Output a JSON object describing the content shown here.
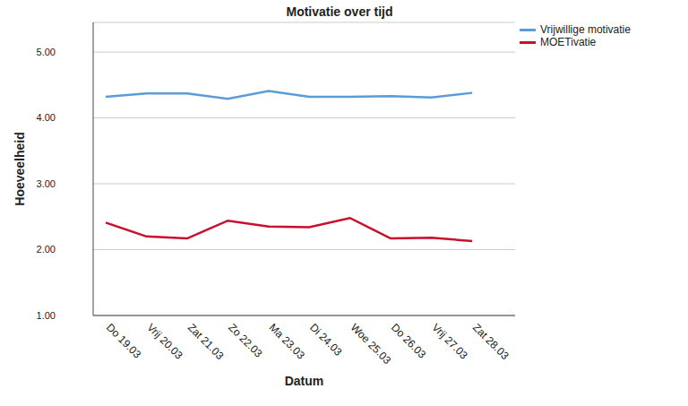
{
  "chart_data": {
    "type": "line",
    "title": "Motivatie over tijd",
    "x_label": "Datum",
    "y_label": "Hoeveelheid",
    "categories": [
      "Do 19.03",
      "Vrij 20.03",
      "Zat 21.03",
      "Zo 22.03",
      "Ma 23.03",
      "Di 24.03",
      "Woe 25.03",
      "Do 26.03",
      "Vrij 27.03",
      "Zat 28.03"
    ],
    "series": [
      {
        "name": "Vrijwillige motivatie",
        "color": "#5b9bd8",
        "values": [
          4.32,
          4.37,
          4.37,
          4.29,
          4.41,
          4.32,
          4.32,
          4.33,
          4.31,
          4.38
        ]
      },
      {
        "name": "MOETivatie",
        "color": "#c8102e",
        "values": [
          2.41,
          2.2,
          2.17,
          2.44,
          2.35,
          2.34,
          2.48,
          2.17,
          2.18,
          2.13
        ]
      }
    ],
    "ylim": [
      1,
      5.45
    ],
    "yticks": [
      {
        "value": 1,
        "label": "1.00"
      },
      {
        "value": 2,
        "label": "2.00"
      },
      {
        "value": 3,
        "label": "3.00"
      },
      {
        "value": 4,
        "label": "4.00"
      },
      {
        "value": 5,
        "label": "5.00"
      }
    ],
    "grid": true,
    "legend": "top-right"
  }
}
